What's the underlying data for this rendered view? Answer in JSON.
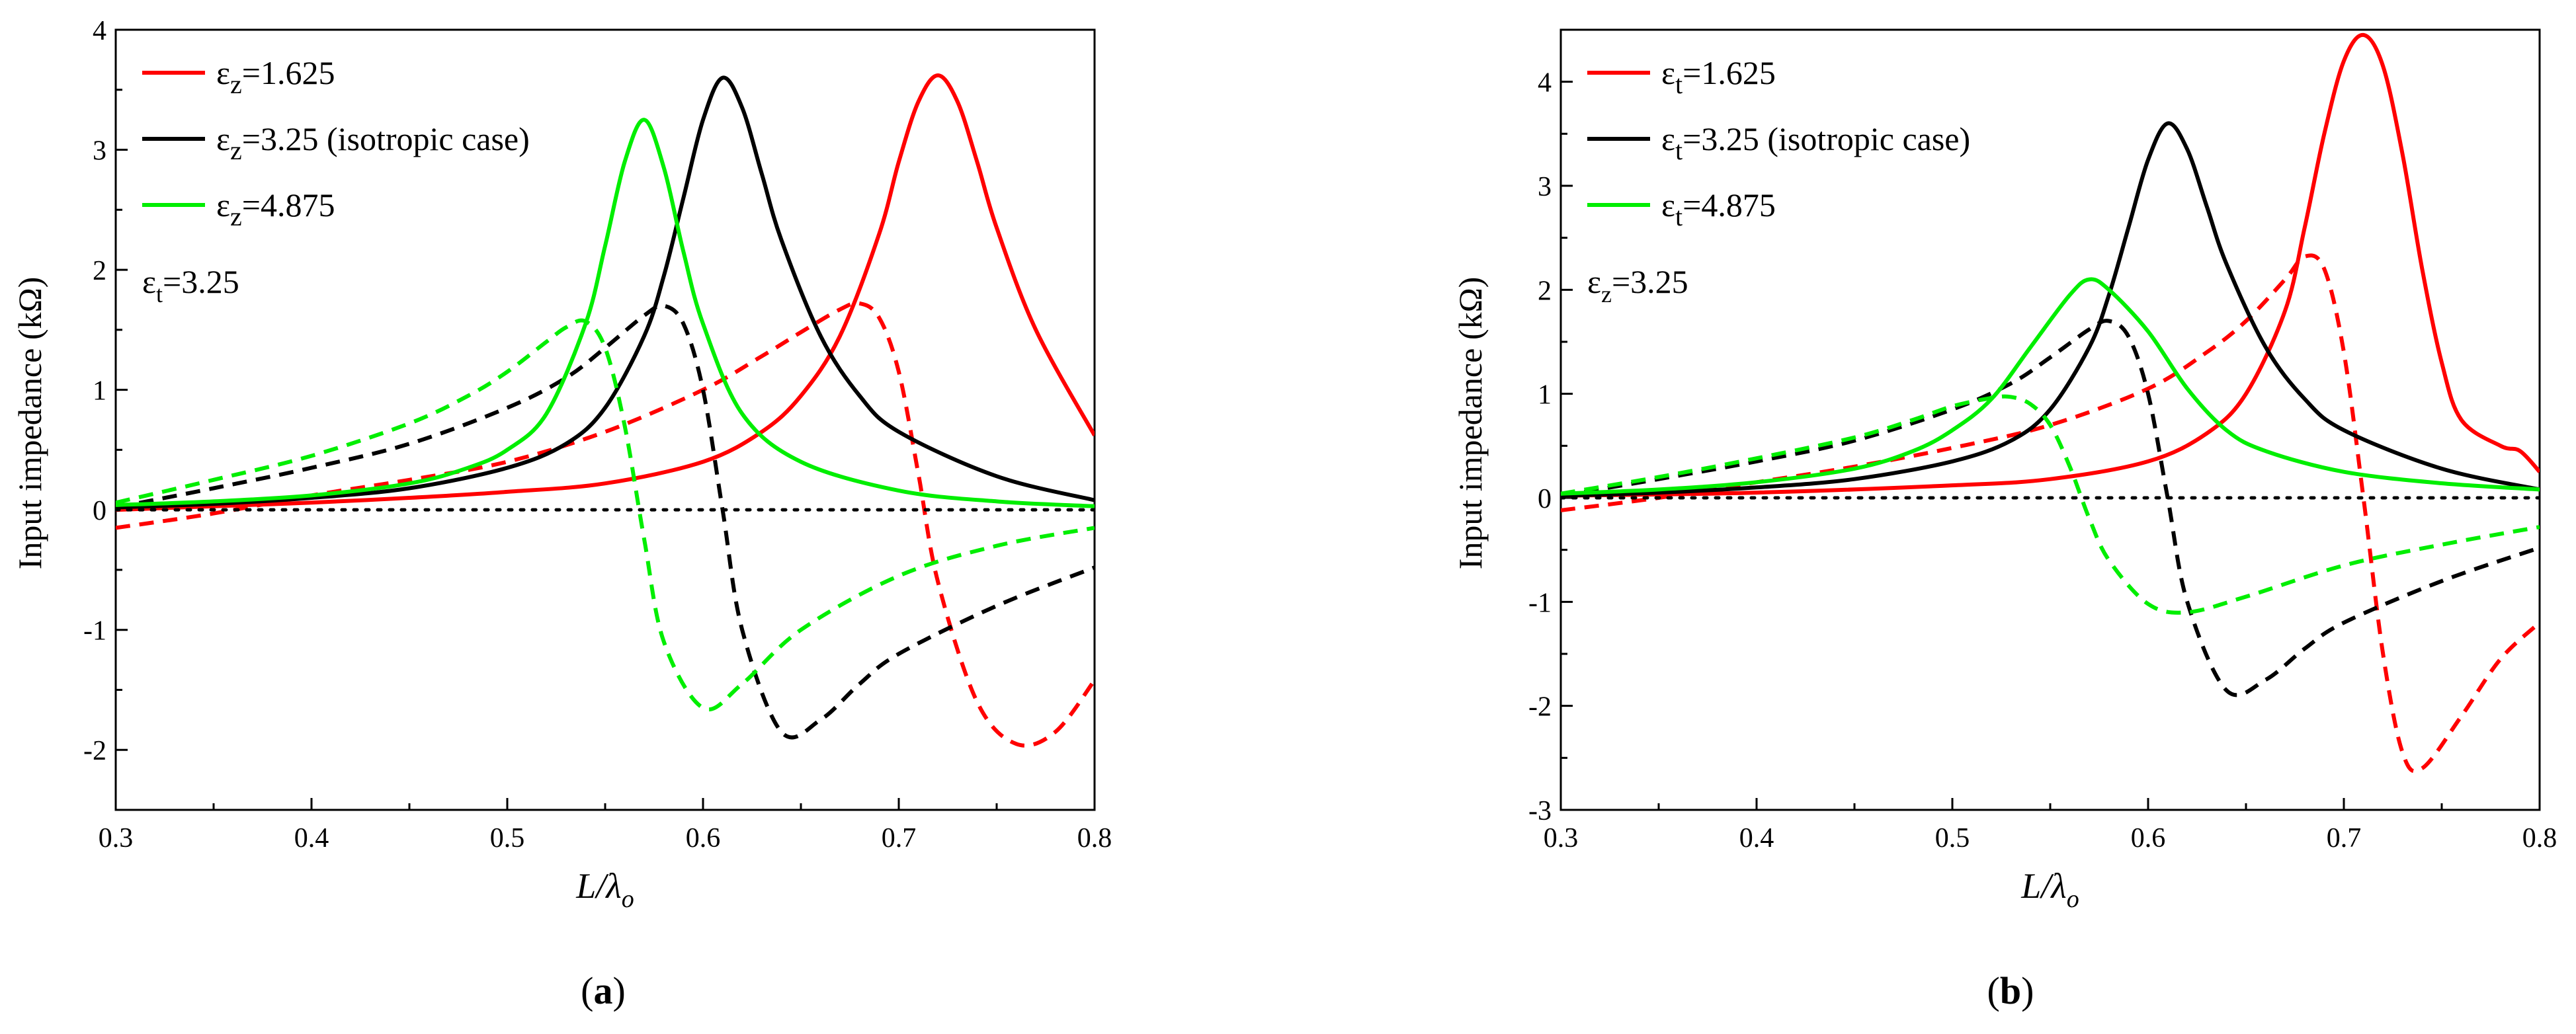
{
  "chart_data": [
    {
      "type": "line",
      "panel_label": {
        "open": "(",
        "letter": "a",
        "close": ")"
      },
      "xlabel": {
        "main": "L/λ",
        "sub": "o"
      },
      "ylabel": "Input impedance (kΩ)",
      "xlim": [
        0.3,
        0.8
      ],
      "ylim": [
        -2.5,
        4
      ],
      "xticks": [
        0.3,
        0.4,
        0.5,
        0.6,
        0.7,
        0.8
      ],
      "xtick_labels": [
        "0.3",
        "0.4",
        "0.5",
        "0.6",
        "0.7",
        "0.8"
      ],
      "yticks": [
        -2,
        -1,
        0,
        1,
        2,
        3,
        4
      ],
      "ytick_labels": [
        "-2",
        "-1",
        "0",
        "1",
        "2",
        "3",
        "4"
      ],
      "legend": [
        {
          "sym": "ε",
          "sub": "z",
          "text": "=1.625",
          "color": "#ff0000"
        },
        {
          "sym": "ε",
          "sub": "z",
          "text": "=3.25 (isotropic case)",
          "color": "#000000"
        },
        {
          "sym": "ε",
          "sub": "z",
          "text": "=4.875",
          "color": "#00ee00"
        }
      ],
      "annotation": {
        "sym": "ε",
        "sub": "t",
        "text": "=3.25"
      },
      "series": [
        {
          "name": "εz=1.625 (real)",
          "color": "#ff0000",
          "dash": false,
          "x": [
            0.3,
            0.35,
            0.4,
            0.45,
            0.5,
            0.55,
            0.6,
            0.63,
            0.65,
            0.67,
            0.69,
            0.7,
            0.71,
            0.72,
            0.73,
            0.74,
            0.75,
            0.77,
            0.8
          ],
          "y": [
            0.0,
            0.03,
            0.06,
            0.1,
            0.15,
            0.22,
            0.4,
            0.65,
            0.95,
            1.45,
            2.3,
            2.9,
            3.4,
            3.62,
            3.4,
            2.9,
            2.35,
            1.5,
            0.62
          ]
        },
        {
          "name": "εz=1.625 (imag)",
          "color": "#ff0000",
          "dash": true,
          "x": [
            0.3,
            0.35,
            0.4,
            0.45,
            0.5,
            0.55,
            0.6,
            0.63,
            0.65,
            0.67,
            0.68,
            0.69,
            0.7,
            0.71,
            0.72,
            0.74,
            0.76,
            0.78,
            0.8
          ],
          "y": [
            -0.15,
            -0.03,
            0.12,
            0.25,
            0.4,
            0.65,
            1.0,
            1.28,
            1.48,
            1.67,
            1.72,
            1.6,
            1.15,
            0.3,
            -0.6,
            -1.6,
            -1.95,
            -1.85,
            -1.42
          ]
        },
        {
          "name": "εz=3.25 (real)",
          "color": "#000000",
          "dash": false,
          "x": [
            0.3,
            0.35,
            0.4,
            0.45,
            0.5,
            0.53,
            0.55,
            0.57,
            0.58,
            0.59,
            0.6,
            0.61,
            0.62,
            0.63,
            0.64,
            0.66,
            0.68,
            0.7,
            0.75,
            0.8
          ],
          "y": [
            0.02,
            0.05,
            0.1,
            0.18,
            0.35,
            0.55,
            0.85,
            1.45,
            1.95,
            2.6,
            3.25,
            3.6,
            3.35,
            2.8,
            2.25,
            1.45,
            0.95,
            0.65,
            0.28,
            0.08
          ]
        },
        {
          "name": "εz=3.25 (imag)",
          "color": "#000000",
          "dash": true,
          "x": [
            0.3,
            0.35,
            0.4,
            0.45,
            0.5,
            0.53,
            0.55,
            0.57,
            0.58,
            0.59,
            0.6,
            0.61,
            0.62,
            0.64,
            0.66,
            0.68,
            0.7,
            0.75,
            0.8
          ],
          "y": [
            0.02,
            0.18,
            0.35,
            0.55,
            0.85,
            1.1,
            1.35,
            1.62,
            1.7,
            1.55,
            1.0,
            0.0,
            -1.0,
            -1.85,
            -1.75,
            -1.45,
            -1.2,
            -0.8,
            -0.48
          ]
        },
        {
          "name": "εz=4.875 (real)",
          "color": "#00ee00",
          "dash": false,
          "x": [
            0.3,
            0.35,
            0.4,
            0.45,
            0.48,
            0.5,
            0.52,
            0.54,
            0.55,
            0.56,
            0.57,
            0.58,
            0.59,
            0.6,
            0.62,
            0.65,
            0.7,
            0.75,
            0.8
          ],
          "y": [
            0.04,
            0.07,
            0.12,
            0.22,
            0.35,
            0.5,
            0.8,
            1.55,
            2.2,
            2.9,
            3.25,
            2.85,
            2.15,
            1.55,
            0.8,
            0.4,
            0.16,
            0.07,
            0.03
          ]
        },
        {
          "name": "εz=4.875 (imag)",
          "color": "#00ee00",
          "dash": true,
          "x": [
            0.3,
            0.35,
            0.4,
            0.45,
            0.48,
            0.5,
            0.52,
            0.53,
            0.54,
            0.55,
            0.56,
            0.57,
            0.58,
            0.6,
            0.62,
            0.65,
            0.7,
            0.75,
            0.8
          ],
          "y": [
            0.06,
            0.25,
            0.45,
            0.72,
            0.95,
            1.15,
            1.4,
            1.52,
            1.57,
            1.35,
            0.7,
            -0.25,
            -1.1,
            -1.65,
            -1.45,
            -1.0,
            -0.55,
            -0.3,
            -0.15
          ]
        },
        {
          "name": "zero",
          "color": "#000000",
          "dash": "dot",
          "x": [
            0.3,
            0.8
          ],
          "y": [
            0,
            0
          ]
        }
      ]
    },
    {
      "type": "line",
      "panel_label": {
        "open": "(",
        "letter": "b",
        "close": ")"
      },
      "xlabel": {
        "main": "L/λ",
        "sub": "o"
      },
      "ylabel": "Input impedance (kΩ)",
      "xlim": [
        0.3,
        0.8
      ],
      "ylim": [
        -3,
        4.5
      ],
      "xticks": [
        0.3,
        0.4,
        0.5,
        0.6,
        0.7,
        0.8
      ],
      "xtick_labels": [
        "0.3",
        "0.4",
        "0.5",
        "0.6",
        "0.7",
        "0.8"
      ],
      "yticks": [
        -3,
        -2,
        -1,
        0,
        1,
        2,
        3,
        4
      ],
      "ytick_labels": [
        "-3",
        "-2",
        "-1",
        "0",
        "1",
        "2",
        "3",
        "4"
      ],
      "legend": [
        {
          "sym": "ε",
          "sub": "t",
          "text": "=1.625",
          "color": "#ff0000"
        },
        {
          "sym": "ε",
          "sub": "t",
          "text": "=3.25 (isotropic case)",
          "color": "#000000"
        },
        {
          "sym": "ε",
          "sub": "t",
          "text": "=4.875",
          "color": "#00ee00"
        }
      ],
      "annotation": {
        "sym": "ε",
        "sub": "z",
        "text": "=3.25"
      },
      "series": [
        {
          "name": "εt=1.625 (real)",
          "color": "#ff0000",
          "dash": false,
          "x": [
            0.3,
            0.4,
            0.5,
            0.55,
            0.6,
            0.63,
            0.65,
            0.67,
            0.68,
            0.69,
            0.7,
            0.71,
            0.72,
            0.73,
            0.74,
            0.75,
            0.76,
            0.78,
            0.79,
            0.8
          ],
          "y": [
            0.02,
            0.05,
            0.12,
            0.18,
            0.35,
            0.62,
            1.0,
            1.8,
            2.6,
            3.5,
            4.2,
            4.45,
            4.15,
            3.3,
            2.2,
            1.3,
            0.75,
            0.5,
            0.45,
            0.25
          ]
        },
        {
          "name": "εt=1.625 (imag)",
          "color": "#ff0000",
          "dash": true,
          "x": [
            0.3,
            0.35,
            0.4,
            0.45,
            0.5,
            0.55,
            0.6,
            0.63,
            0.65,
            0.67,
            0.68,
            0.69,
            0.7,
            0.71,
            0.72,
            0.73,
            0.74,
            0.76,
            0.78,
            0.8
          ],
          "y": [
            -0.12,
            0.0,
            0.15,
            0.3,
            0.48,
            0.7,
            1.05,
            1.4,
            1.7,
            2.1,
            2.32,
            2.2,
            1.4,
            0.0,
            -1.5,
            -2.45,
            -2.6,
            -2.1,
            -1.55,
            -1.2
          ]
        },
        {
          "name": "εt=3.25 (real)",
          "color": "#000000",
          "dash": false,
          "x": [
            0.3,
            0.35,
            0.4,
            0.45,
            0.5,
            0.53,
            0.55,
            0.57,
            0.58,
            0.59,
            0.6,
            0.61,
            0.62,
            0.63,
            0.64,
            0.66,
            0.68,
            0.7,
            0.75,
            0.8
          ],
          "y": [
            0.02,
            0.05,
            0.1,
            0.18,
            0.35,
            0.55,
            0.85,
            1.45,
            1.95,
            2.6,
            3.25,
            3.6,
            3.35,
            2.8,
            2.25,
            1.45,
            0.95,
            0.65,
            0.28,
            0.08
          ]
        },
        {
          "name": "εt=3.25 (imag)",
          "color": "#000000",
          "dash": true,
          "x": [
            0.3,
            0.35,
            0.4,
            0.45,
            0.5,
            0.53,
            0.55,
            0.57,
            0.58,
            0.59,
            0.6,
            0.61,
            0.62,
            0.64,
            0.66,
            0.68,
            0.7,
            0.75,
            0.8
          ],
          "y": [
            0.02,
            0.18,
            0.35,
            0.55,
            0.85,
            1.1,
            1.35,
            1.62,
            1.7,
            1.55,
            1.0,
            0.0,
            -1.0,
            -1.85,
            -1.75,
            -1.45,
            -1.2,
            -0.8,
            -0.48
          ]
        },
        {
          "name": "εt=4.875 (real)",
          "color": "#00ee00",
          "dash": false,
          "x": [
            0.3,
            0.35,
            0.4,
            0.45,
            0.48,
            0.5,
            0.52,
            0.54,
            0.56,
            0.57,
            0.58,
            0.6,
            0.62,
            0.64,
            0.66,
            0.7,
            0.75,
            0.8
          ],
          "y": [
            0.04,
            0.08,
            0.15,
            0.28,
            0.45,
            0.65,
            0.95,
            1.45,
            1.95,
            2.1,
            2.0,
            1.6,
            1.05,
            0.65,
            0.45,
            0.25,
            0.14,
            0.08
          ]
        },
        {
          "name": "εt=4.875 (imag)",
          "color": "#00ee00",
          "dash": true,
          "x": [
            0.3,
            0.35,
            0.4,
            0.45,
            0.48,
            0.5,
            0.52,
            0.53,
            0.54,
            0.55,
            0.56,
            0.57,
            0.58,
            0.6,
            0.62,
            0.65,
            0.7,
            0.75,
            0.8
          ],
          "y": [
            0.04,
            0.2,
            0.38,
            0.58,
            0.75,
            0.88,
            0.96,
            0.97,
            0.9,
            0.7,
            0.3,
            -0.2,
            -0.6,
            -1.02,
            -1.1,
            -0.95,
            -0.65,
            -0.45,
            -0.28
          ]
        },
        {
          "name": "zero",
          "color": "#000000",
          "dash": "dot",
          "x": [
            0.3,
            0.8
          ],
          "y": [
            0,
            0
          ]
        }
      ]
    }
  ]
}
